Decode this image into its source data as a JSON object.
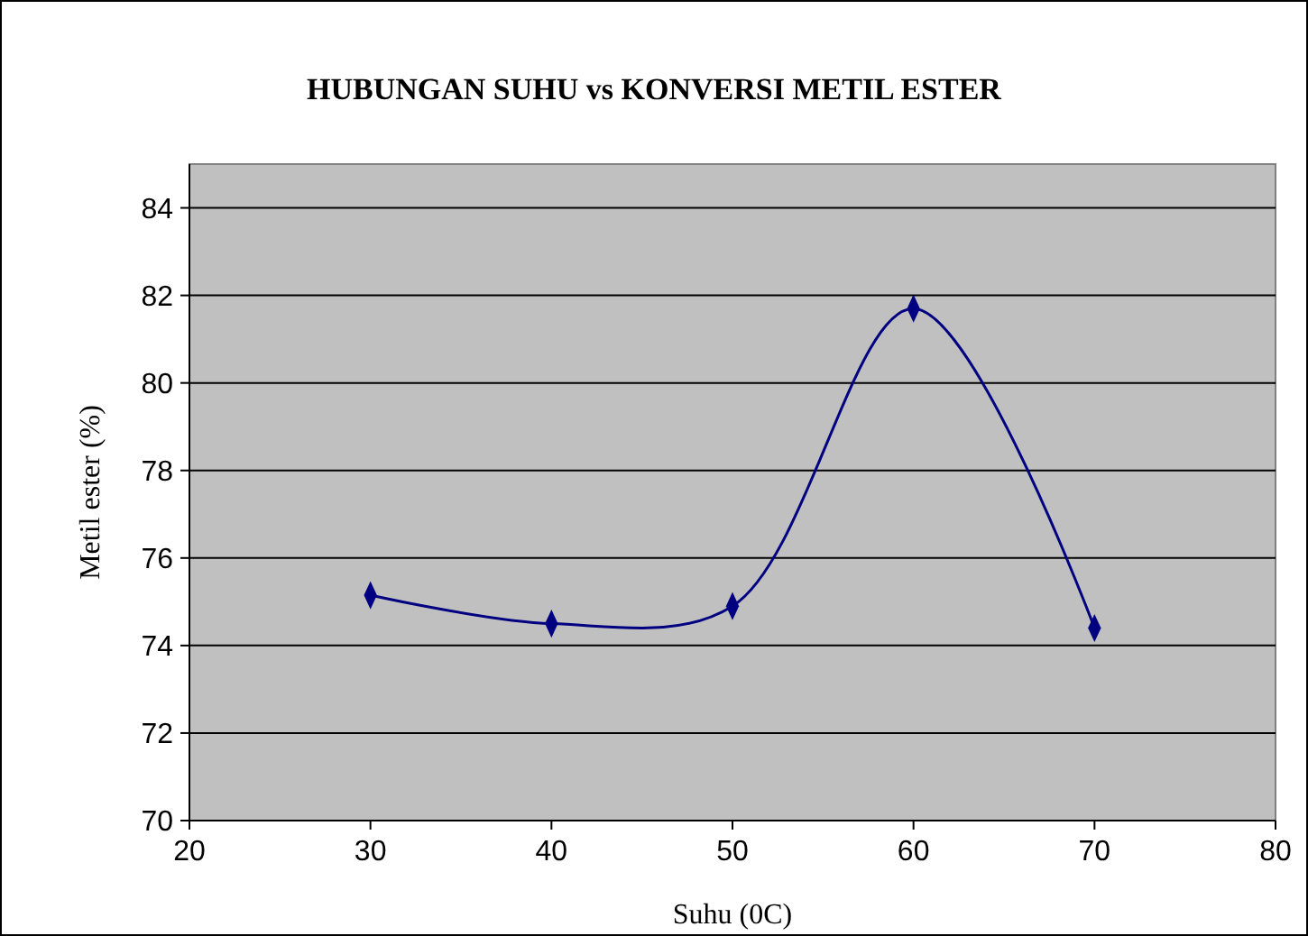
{
  "chart_data": {
    "type": "line",
    "title": "HUBUNGAN SUHU vs KONVERSI METIL ESTER",
    "xlabel": "Suhu (0C)",
    "ylabel": "Metil ester (%)",
    "x": [
      30,
      40,
      50,
      60,
      70
    ],
    "series": [
      {
        "color": "#000080",
        "values": [
          75.15,
          74.5,
          74.9,
          81.7,
          74.4
        ]
      }
    ],
    "xlim": [
      20,
      80
    ],
    "xticks": [
      20,
      30,
      40,
      50,
      60,
      70,
      80
    ],
    "ylim": [
      70,
      85
    ],
    "yticks": [
      70,
      72,
      74,
      76,
      78,
      80,
      82,
      84
    ],
    "grid": "y",
    "marker": "diamond",
    "line_style": "solid"
  }
}
